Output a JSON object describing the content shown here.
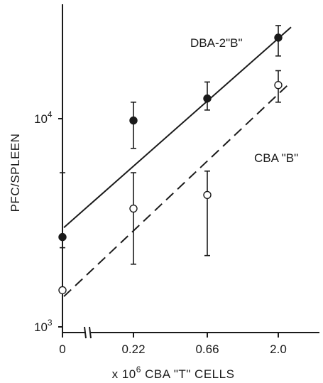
{
  "chart_data": {
    "type": "scatter",
    "title": "",
    "xlabel_prefix": "x 10",
    "xlabel_exp": "6",
    "xlabel_suffix": " CBA \"T\" CELLS",
    "ylabel": "PFC/SPLEEN",
    "y_scale": "log",
    "ylim": [
      1000,
      30000
    ],
    "categories": [
      "0",
      "0.22",
      "0.66",
      "2.0"
    ],
    "y_ticks": [
      {
        "value": 1000,
        "base": "10",
        "exp": "3"
      },
      {
        "value": 10000,
        "base": "10",
        "exp": "4"
      }
    ],
    "x_axis_break": true,
    "grid": false,
    "series": [
      {
        "name": "DBA-2\"B\"",
        "marker": "filled-circle",
        "line": "solid",
        "points": [
          {
            "x": "0",
            "y": 2700,
            "err_low": 2700,
            "err_high": 5500
          },
          {
            "x": "0.22",
            "y": 9800,
            "err_low": 7200,
            "err_high": 12000
          },
          {
            "x": "0.66",
            "y": 12500,
            "err_low": 11000,
            "err_high": 15000
          },
          {
            "x": "2.0",
            "y": 24500,
            "err_low": 20000,
            "err_high": 28000
          }
        ],
        "fit": {
          "y_start": 3000,
          "y_end": 27500
        }
      },
      {
        "name": "CBA \"B\"",
        "marker": "open-circle",
        "line": "dashed",
        "points": [
          {
            "x": "0",
            "y": 1500,
            "err_low": 1500,
            "err_high": 2400
          },
          {
            "x": "0.22",
            "y": 3700,
            "err_low": 2000,
            "err_high": 5500
          },
          {
            "x": "0.66",
            "y": 4300,
            "err_low": 2200,
            "err_high": 5600
          },
          {
            "x": "2.0",
            "y": 14500,
            "err_low": 12000,
            "err_high": 17000
          }
        ],
        "fit": {
          "y_start": 1400,
          "y_end": 15000
        }
      }
    ]
  }
}
